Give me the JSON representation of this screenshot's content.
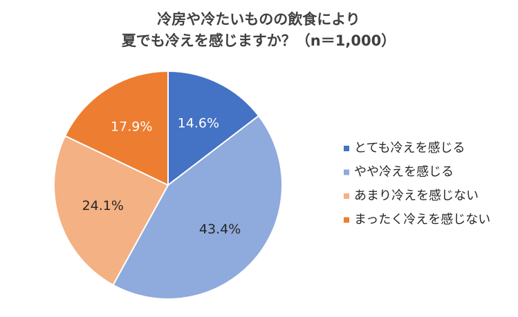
{
  "chart_data": {
    "type": "pie",
    "title": [
      "冷房や冷たいものの飲食により",
      "夏でも冷えを感じますか？（n＝1,000）"
    ],
    "categories": [
      "とても冷えを感じる",
      "やや冷えを感じる",
      "あまり冷えを感じない",
      "まったく冷えを感じない"
    ],
    "values": [
      14.6,
      43.4,
      24.1,
      17.9
    ],
    "value_labels": [
      "14.6%",
      "43.4%",
      "24.1%",
      "17.9%"
    ],
    "colors": [
      "#4472c4",
      "#8faadc",
      "#f4b183",
      "#ed7d31"
    ],
    "legend": "right"
  }
}
